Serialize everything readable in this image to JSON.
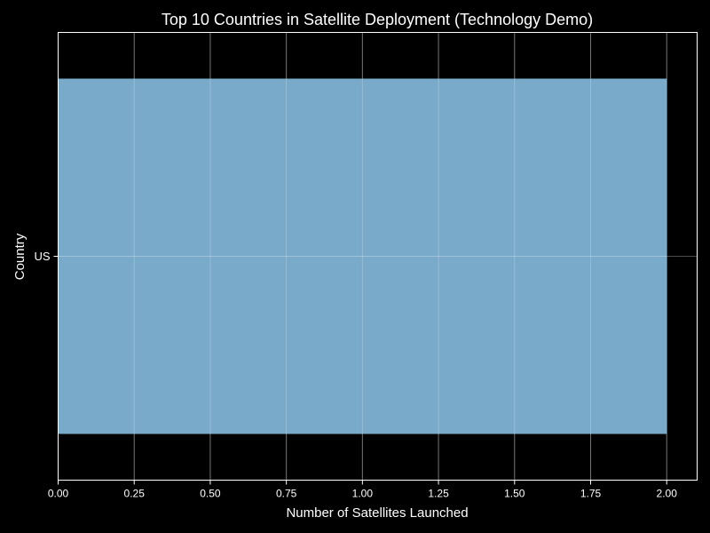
{
  "chart_data": {
    "type": "bar",
    "orientation": "horizontal",
    "title": "Top 10 Countries in Satellite Deployment (Technology Demo)",
    "xlabel": "Number of Satellites Launched",
    "ylabel": "Country",
    "categories": [
      "US"
    ],
    "values": [
      2
    ],
    "xlim": [
      0,
      2.1
    ],
    "xticks": [
      0,
      0.25,
      0.5,
      0.75,
      1.0,
      1.25,
      1.5,
      1.75,
      2.0
    ],
    "xtick_labels": [
      "0.00",
      "0.25",
      "0.50",
      "0.75",
      "1.00",
      "1.25",
      "1.50",
      "1.75",
      "2.00"
    ],
    "grid": true,
    "bar_color": "#79aac9",
    "background": "#000000",
    "grid_color": "#ffffff"
  }
}
